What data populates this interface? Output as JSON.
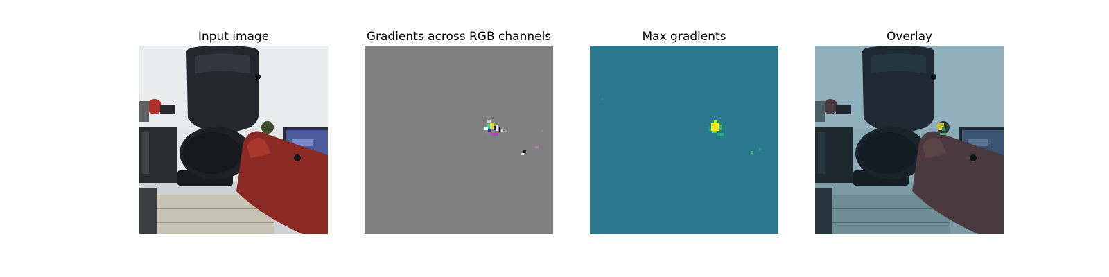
{
  "panels": [
    {
      "title": "Input image"
    },
    {
      "title": "Gradients across RGB channels"
    },
    {
      "title": "Max gradients"
    },
    {
      "title": "Overlay"
    }
  ],
  "colors": {
    "background": "#ffffff",
    "gradient_gray": "#808080",
    "max_gradient_teal": "#2a788e",
    "highlight_yellow": "#fde725",
    "highlight_green": "#35b779",
    "highlight_magenta": "#c040c0",
    "robot_arm_red": "#8a2a22",
    "gripper_black": "#1e2028"
  }
}
